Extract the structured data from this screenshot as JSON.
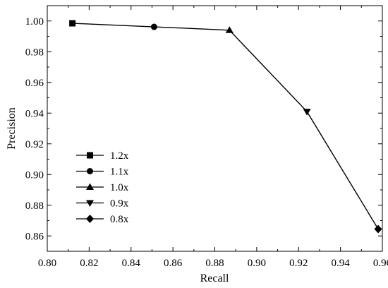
{
  "chart_data": {
    "type": "line",
    "title": "",
    "xlabel": "Recall",
    "ylabel": "Precision",
    "xlim": [
      0.8,
      0.96
    ],
    "ylim": [
      0.85,
      1.01
    ],
    "x_ticks": [
      "0.80",
      "0.82",
      "0.84",
      "0.86",
      "0.88",
      "0.90",
      "0.92",
      "0.94",
      "0.96"
    ],
    "y_ticks": [
      "0.86",
      "0.88",
      "0.90",
      "0.92",
      "0.94",
      "0.96",
      "0.98",
      "1.00"
    ],
    "grid": false,
    "legend_position": "middle-left",
    "line_color": "#000000",
    "points": [
      {
        "label": "1.2x",
        "x": 0.812,
        "y": 0.9985,
        "marker": "square"
      },
      {
        "label": "1.1x",
        "x": 0.851,
        "y": 0.9962,
        "marker": "circle"
      },
      {
        "label": "1.0x",
        "x": 0.887,
        "y": 0.994,
        "marker": "triangle-up"
      },
      {
        "label": "0.9x",
        "x": 0.924,
        "y": 0.941,
        "marker": "triangle-down"
      },
      {
        "label": "0.8x",
        "x": 0.958,
        "y": 0.8645,
        "marker": "diamond"
      }
    ]
  }
}
